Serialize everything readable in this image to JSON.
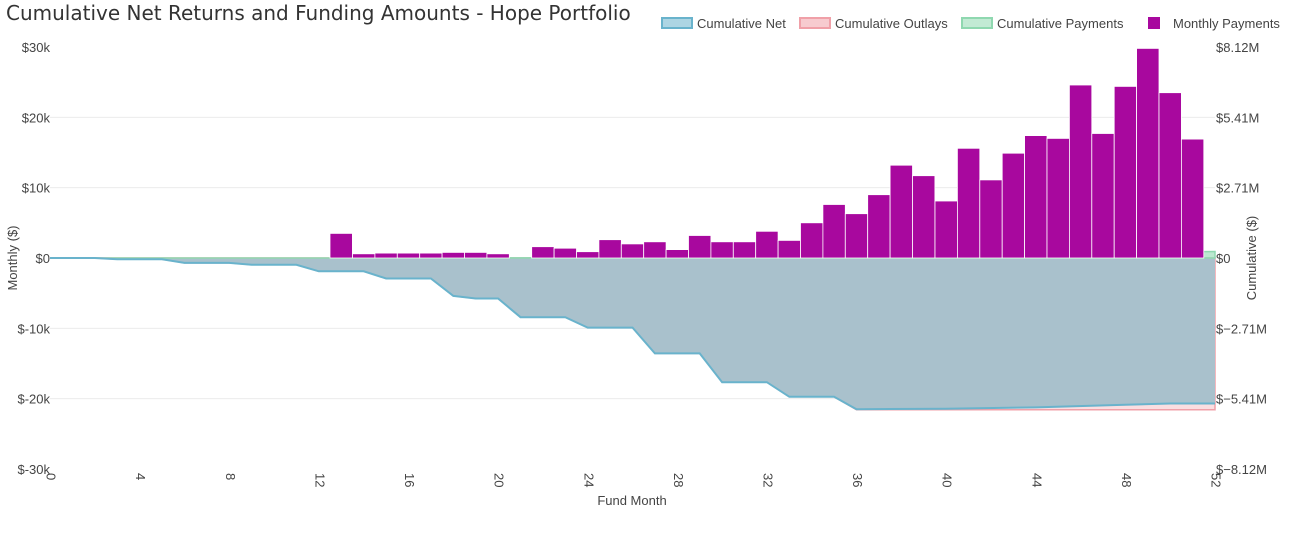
{
  "chart_data": {
    "type": "bar",
    "title": "Cumulative Net Returns and Funding Amounts - Hope Portfolio",
    "xlabel": "Fund Month",
    "ylabel_left": "Monthly ($)",
    "ylabel_right": "Cumulative ($)",
    "xlim": [
      0,
      52
    ],
    "ylim_left": [
      -30000,
      30000
    ],
    "ylim_right": [
      -8120000,
      8120000
    ],
    "x_ticks": [
      0,
      4,
      8,
      12,
      16,
      20,
      24,
      28,
      32,
      36,
      40,
      44,
      48,
      52
    ],
    "x_tick_labels": [
      "0",
      "4",
      "8",
      "12",
      "16",
      "20",
      "24",
      "28",
      "32",
      "36",
      "40",
      "44",
      "48",
      "52"
    ],
    "left_ticks": [
      {
        "value": 30000,
        "label": "$30k"
      },
      {
        "value": 20000,
        "label": "$20k"
      },
      {
        "value": 10000,
        "label": "$10k"
      },
      {
        "value": 0,
        "label": "$0"
      },
      {
        "value": -10000,
        "label": "$-10k"
      },
      {
        "value": -20000,
        "label": "$-20k"
      },
      {
        "value": -30000,
        "label": "$-30k"
      }
    ],
    "right_ticks": [
      {
        "value": 8120000,
        "label": "$8.12M"
      },
      {
        "value": 5410000,
        "label": "$5.41M"
      },
      {
        "value": 2710000,
        "label": "$2.71M"
      },
      {
        "value": 0,
        "label": "$0"
      },
      {
        "value": -2710000,
        "label": "$−2.71M"
      },
      {
        "value": -5410000,
        "label": "$−5.41M"
      },
      {
        "value": -8120000,
        "label": "$−8.12M"
      }
    ],
    "legend": {
      "placement": "top-right",
      "entries": [
        {
          "name": "Cumulative Net",
          "color": "#69b3cc"
        },
        {
          "name": "Cumulative Outlays",
          "color": "#f0a0a8"
        },
        {
          "name": "Cumulative Payments",
          "color": "#8fd8b0"
        },
        {
          "name": "Monthly Payments",
          "color": "#a8089e"
        }
      ]
    },
    "grid": true,
    "colors": {
      "net_line": "#69b3cc",
      "net_fill": "#a9c1cc",
      "outlays": "#f0a0a8",
      "payments": "#8fd8b0",
      "bars": "#a8089e"
    },
    "series": [
      {
        "name": "Monthly Payments",
        "axis": "left",
        "type": "bar",
        "x": [
          13,
          14,
          15,
          16,
          17,
          18,
          19,
          20,
          21,
          22,
          23,
          24,
          25,
          26,
          27,
          28,
          29,
          30,
          31,
          32,
          33,
          34,
          35,
          36,
          37,
          38,
          39,
          40,
          41,
          42,
          43,
          44,
          45,
          46,
          47,
          48,
          49,
          50,
          51
        ],
        "values": [
          3500,
          600,
          700,
          700,
          700,
          800,
          800,
          600,
          0,
          1600,
          1400,
          900,
          2600,
          2000,
          2300,
          1200,
          3200,
          2300,
          2300,
          3800,
          2500,
          5000,
          7600,
          6300,
          9000,
          13200,
          11700,
          8100,
          15600,
          11100,
          14900,
          17400,
          17000,
          24600,
          17700,
          24400,
          29800,
          23500,
          16900
        ]
      },
      {
        "name": "Cumulative Net",
        "axis": "right",
        "type": "area",
        "x": [
          0,
          2,
          3,
          5,
          6,
          8,
          9,
          11,
          12,
          14,
          15,
          17,
          18,
          19,
          20,
          21,
          23,
          24,
          26,
          27,
          29,
          30,
          32,
          33,
          35,
          36,
          40,
          44,
          48,
          50,
          52
        ],
        "values": [
          0,
          0,
          -50000,
          -50000,
          -190000,
          -190000,
          -260000,
          -260000,
          -510000,
          -510000,
          -790000,
          -790000,
          -1460000,
          -1560000,
          -1560000,
          -2280000,
          -2280000,
          -2680000,
          -2680000,
          -3670000,
          -3670000,
          -4780000,
          -4780000,
          -5340000,
          -5340000,
          -5820000,
          -5800000,
          -5750000,
          -5650000,
          -5600000,
          -5600000
        ]
      },
      {
        "name": "Cumulative Outlays",
        "axis": "right",
        "type": "area",
        "x": [
          0,
          2,
          3,
          5,
          6,
          8,
          9,
          11,
          12,
          14,
          15,
          17,
          18,
          19,
          20,
          21,
          23,
          24,
          26,
          27,
          29,
          30,
          32,
          33,
          35,
          36,
          40,
          44,
          48,
          50,
          52
        ],
        "values": [
          0,
          0,
          -50000,
          -50000,
          -190000,
          -190000,
          -260000,
          -260000,
          -510000,
          -510000,
          -790000,
          -790000,
          -1460000,
          -1560000,
          -1560000,
          -2280000,
          -2280000,
          -2680000,
          -2680000,
          -3670000,
          -3670000,
          -4780000,
          -4780000,
          -5340000,
          -5340000,
          -5840000,
          -5840000,
          -5840000,
          -5840000,
          -5840000,
          -5840000
        ]
      },
      {
        "name": "Cumulative Payments",
        "axis": "right",
        "type": "area",
        "x": [
          0,
          12,
          20,
          28,
          32,
          36,
          40,
          44,
          48,
          50,
          52
        ],
        "values": [
          0,
          0,
          5000,
          15000,
          25000,
          45000,
          80000,
          140000,
          200000,
          230000,
          250000
        ]
      }
    ]
  }
}
